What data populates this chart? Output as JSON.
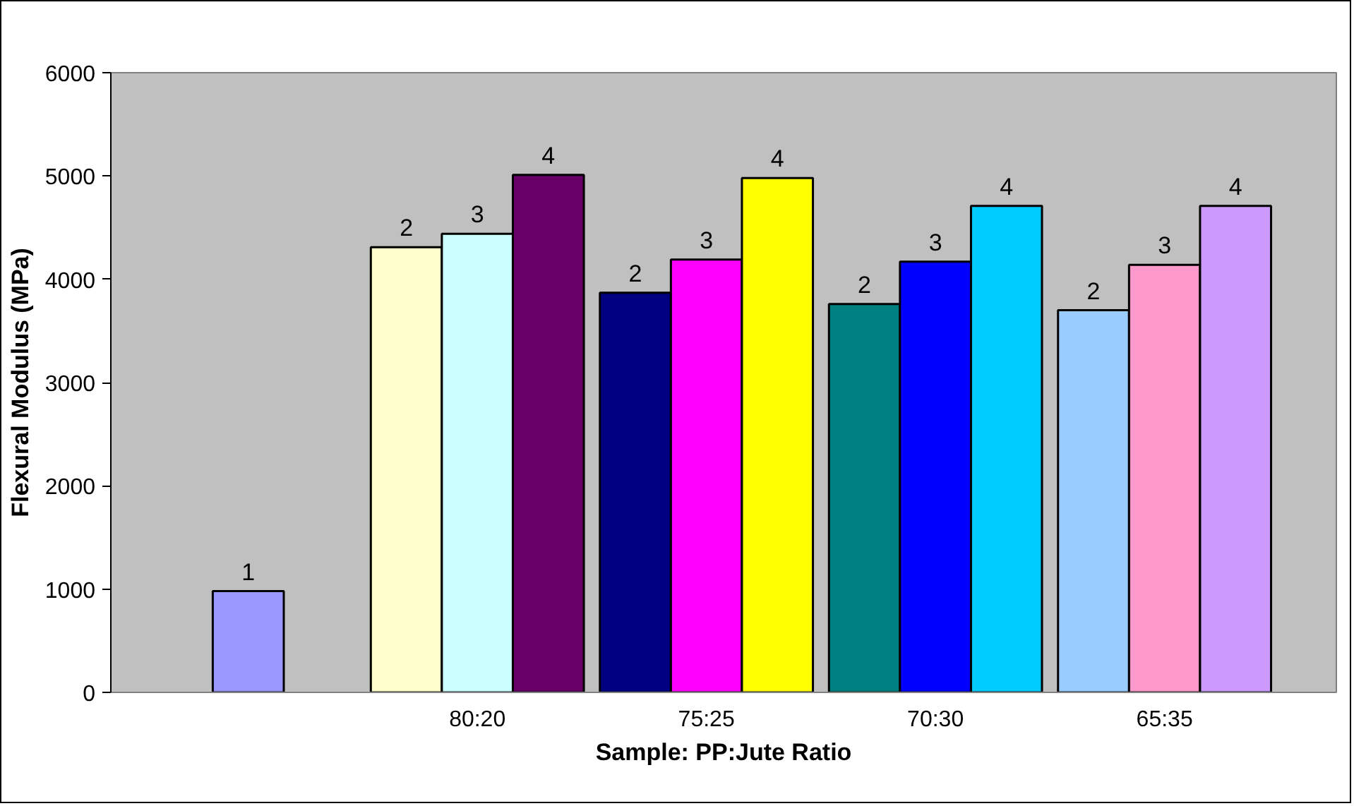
{
  "chart_data": {
    "type": "bar",
    "xlabel": "Sample: PP:Jute Ratio",
    "ylabel": "Flexural Modulus (MPa)",
    "categories": [
      null,
      "80:20",
      "75:25",
      "70:30",
      "65:35"
    ],
    "series": [
      {
        "name": "1",
        "colors": [
          "#9999ff",
          null,
          null,
          null,
          null
        ],
        "values": [
          980,
          null,
          null,
          null,
          null
        ]
      },
      {
        "name": "2",
        "colors": [
          null,
          "#ffffcc",
          "#000080",
          "#008080",
          "#99ccff"
        ],
        "values": [
          null,
          4310,
          3870,
          3760,
          3700
        ]
      },
      {
        "name": "3",
        "colors": [
          null,
          "#ccffff",
          "#ff00ff",
          "#0000ff",
          "#ff99cc"
        ],
        "values": [
          null,
          4440,
          4190,
          4170,
          4140
        ]
      },
      {
        "name": "4",
        "colors": [
          null,
          "#660066",
          "#ffff00",
          "#00ccff",
          "#cc99ff"
        ],
        "values": [
          null,
          5010,
          4980,
          4710,
          4710
        ]
      }
    ],
    "ylim": [
      0,
      6000
    ],
    "yticks": [
      0,
      1000,
      2000,
      3000,
      4000,
      5000,
      6000
    ],
    "grid": false
  }
}
